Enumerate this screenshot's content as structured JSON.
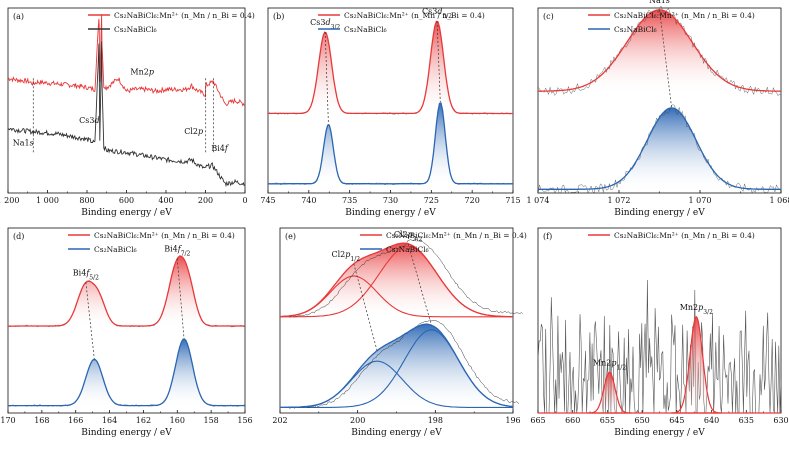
{
  "legend": {
    "doped": "Cs₂NaBiCl₆:Mn²⁺",
    "ratio": "(n_Mn / n_Bi = 0.4)",
    "undoped": "Cs₂NaBiCl₆"
  },
  "colors": {
    "doped": "#e8393a",
    "undoped": "#2a66b3",
    "survey_undoped": "#333333",
    "raw": "#555555",
    "dash": "#333333"
  },
  "chart_data": [
    {
      "panel": "(a)",
      "type": "line",
      "kind": "survey",
      "xlabel": "Binding energy / eV",
      "xlim": [
        1200,
        0
      ],
      "xticks": [
        "1 200",
        "1 000",
        "800",
        "600",
        "400",
        "200",
        "0"
      ],
      "series": [
        {
          "name": "Cs₂NaBiCl₆:Mn²⁺ (n_Mn / n_Bi = 0.4)",
          "x": [
            1200,
            1150,
            1100,
            1072,
            1050,
            1000,
            950,
            900,
            850,
            800,
            760,
            740,
            738,
            735,
            726,
            724,
            715,
            700,
            641,
            600,
            560,
            500,
            450,
            400,
            300,
            270,
            250,
            200,
            199,
            165,
            159,
            100,
            50,
            0
          ],
          "y": [
            0.62,
            0.61,
            0.605,
            0.59,
            0.6,
            0.595,
            0.59,
            0.585,
            0.58,
            0.57,
            0.56,
            0.95,
            0.92,
            0.6,
            0.97,
            0.8,
            0.58,
            0.57,
            0.62,
            0.55,
            0.56,
            0.56,
            0.55,
            0.56,
            0.56,
            0.58,
            0.56,
            0.53,
            0.58,
            0.6,
            0.6,
            0.48,
            0.5,
            0.48
          ]
        },
        {
          "name": "Cs₂NaBiCl₆",
          "x": [
            1200,
            1150,
            1100,
            1072,
            1050,
            1000,
            950,
            900,
            850,
            800,
            760,
            740,
            738,
            735,
            726,
            724,
            715,
            700,
            600,
            500,
            450,
            400,
            300,
            270,
            250,
            200,
            199,
            165,
            159,
            100,
            50,
            0
          ],
          "y": [
            0.35,
            0.34,
            0.335,
            0.33,
            0.33,
            0.325,
            0.32,
            0.31,
            0.3,
            0.29,
            0.27,
            0.8,
            0.7,
            0.28,
            0.82,
            0.6,
            0.25,
            0.23,
            0.22,
            0.2,
            0.19,
            0.18,
            0.17,
            0.18,
            0.16,
            0.13,
            0.14,
            0.15,
            0.14,
            0.05,
            0.06,
            0.05
          ]
        }
      ],
      "annotations": [
        {
          "text": "Mn2p",
          "x": 641
        },
        {
          "text": "Cs3d",
          "x": 726
        },
        {
          "text": "Na1s",
          "x": 1072
        },
        {
          "text": "Cl2p",
          "x": 199
        },
        {
          "text": "Bi4f",
          "x": 159
        }
      ]
    },
    {
      "panel": "(b)",
      "type": "line",
      "kind": "peaks",
      "xlabel": "Binding energy / eV",
      "xlim": [
        745,
        715
      ],
      "xticks": [
        "745",
        "740",
        "735",
        "730",
        "725",
        "720",
        "715"
      ],
      "series": [
        {
          "name": "Cs₂NaBiCl₆:Mn²⁺ (n_Mn / n_Bi = 0.4)",
          "base": 0.43,
          "peaks": [
            {
              "x": 738.0,
              "h": 0.44,
              "w": 0.8
            },
            {
              "x": 724.3,
              "h": 0.5,
              "w": 0.8
            }
          ]
        },
        {
          "name": "Cs₂NaBiCl₆",
          "base": 0.05,
          "peaks": [
            {
              "x": 737.6,
              "h": 0.32,
              "w": 0.6
            },
            {
              "x": 723.9,
              "h": 0.44,
              "w": 0.6
            }
          ]
        }
      ],
      "annotations": [
        {
          "text": "Cs3d3/2",
          "x": 738.0
        },
        {
          "text": "Cs3d5/2",
          "x": 724.3
        }
      ]
    },
    {
      "panel": "(c)",
      "type": "line",
      "kind": "peaks",
      "xlabel": "Binding energy / eV",
      "xlim": [
        1074,
        1068
      ],
      "xticks": [
        "1 074",
        "1 072",
        "1 070",
        "1 068"
      ],
      "series": [
        {
          "name": "Cs₂NaBiCl₆:Mn²⁺ (n_Mn / n_Bi = 0.4)",
          "base": 0.55,
          "peaks": [
            {
              "x": 1071.0,
              "h": 0.44,
              "w": 0.8
            }
          ]
        },
        {
          "name": "Cs₂NaBiCl₆",
          "base": 0.02,
          "peaks": [
            {
              "x": 1070.7,
              "h": 0.44,
              "w": 0.6
            }
          ]
        }
      ],
      "annotations": [
        {
          "text": "Na1s",
          "x": 1071.0
        }
      ]
    },
    {
      "panel": "(d)",
      "type": "line",
      "kind": "peaks",
      "xlabel": "Binding energy / eV",
      "xlim": [
        170,
        156
      ],
      "xticks": [
        "170",
        "168",
        "166",
        "164",
        "162",
        "160",
        "158",
        "156"
      ],
      "series": [
        {
          "name": "Cs₂NaBiCl₆:Mn²⁺ (n_Mn / n_Bi = 0.4)",
          "base": 0.47,
          "peaks": [
            {
              "x": 165.4,
              "h": 0.22,
              "w": 0.5
            },
            {
              "x": 164.6,
              "h": 0.12,
              "w": 0.4
            },
            {
              "x": 160.0,
              "h": 0.33,
              "w": 0.5
            },
            {
              "x": 159.3,
              "h": 0.16,
              "w": 0.4
            }
          ]
        },
        {
          "name": "Cs₂NaBiCl₆",
          "base": 0.04,
          "peaks": [
            {
              "x": 164.9,
              "h": 0.25,
              "w": 0.5
            },
            {
              "x": 159.6,
              "h": 0.36,
              "w": 0.5
            }
          ]
        }
      ],
      "annotations": [
        {
          "text": "Bi4f5/2",
          "x": 165.4
        },
        {
          "text": "Bi4f7/2",
          "x": 160.0
        }
      ]
    },
    {
      "panel": "(e)",
      "type": "line",
      "kind": "deconv",
      "xlabel": "Binding energy / eV",
      "xlim": [
        202,
        196
      ],
      "xticks": [
        "202",
        "200",
        "198",
        "196"
      ],
      "series": [
        {
          "name": "Cs₂NaBiCl₆:Mn²⁺ (n_Mn / n_Bi = 0.4)",
          "base": 0.52,
          "peaks": [
            {
              "x": 200.1,
              "h": 0.22,
              "w": 0.6
            },
            {
              "x": 198.7,
              "h": 0.38,
              "w": 0.75
            }
          ]
        },
        {
          "name": "Cs₂NaBiCl₆",
          "base": 0.03,
          "peaks": [
            {
              "x": 199.5,
              "h": 0.25,
              "w": 0.65
            },
            {
              "x": 198.1,
              "h": 0.42,
              "w": 0.7
            }
          ]
        }
      ],
      "annotations": [
        {
          "text": "Cl2p1/2",
          "x": 200.1
        },
        {
          "text": "Cl2p3/2",
          "x": 198.7
        }
      ]
    },
    {
      "panel": "(f)",
      "type": "line",
      "kind": "noisy",
      "xlabel": "Binding energy / eV",
      "xlim": [
        665,
        630
      ],
      "xticks": [
        "665",
        "660",
        "655",
        "650",
        "645",
        "640",
        "635",
        "630"
      ],
      "series": [
        {
          "name": "Cs₂NaBiCl₆:Mn²⁺ (n_Mn / n_Bi = 0.4)",
          "base": 0.0,
          "peaks": [
            {
              "x": 654.7,
              "h": 0.22,
              "w": 0.8
            },
            {
              "x": 642.2,
              "h": 0.52,
              "w": 0.9
            }
          ]
        }
      ],
      "annotations": [
        {
          "text": "Mn2p1/2",
          "x": 654.7
        },
        {
          "text": "Mn2p3/2",
          "x": 642.2
        }
      ]
    }
  ]
}
